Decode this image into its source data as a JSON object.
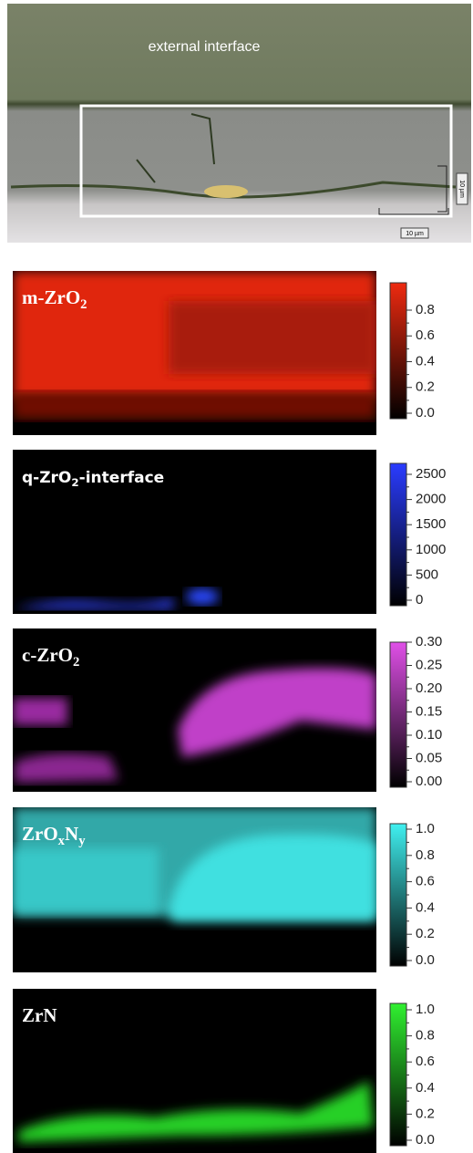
{
  "micrograph": {
    "label": "external interface",
    "scale_bars": [
      "10 µm",
      "10 µm"
    ]
  },
  "maps": [
    {
      "label_parts": [
        "m-ZrO",
        "2"
      ],
      "ticks": [
        "0.0",
        "0.2",
        "0.4",
        "0.6",
        "0.8"
      ]
    },
    {
      "label_parts": [
        "q-ZrO",
        "2",
        "-interface"
      ],
      "ticks": [
        "0",
        "500",
        "1000",
        "1500",
        "2000",
        "2500"
      ]
    },
    {
      "label_parts": [
        "c-ZrO",
        "2"
      ],
      "ticks": [
        "0.00",
        "0.05",
        "0.10",
        "0.15",
        "0.20",
        "0.25",
        "0.30"
      ]
    },
    {
      "label_parts": [
        "ZrO",
        "x",
        "N",
        "y"
      ],
      "ticks": [
        "0.0",
        "0.2",
        "0.4",
        "0.6",
        "0.8",
        "1.0"
      ]
    },
    {
      "label_parts": [
        "ZrN"
      ],
      "ticks": [
        "0.0",
        "0.2",
        "0.4",
        "0.6",
        "0.8",
        "1.0"
      ]
    }
  ]
}
